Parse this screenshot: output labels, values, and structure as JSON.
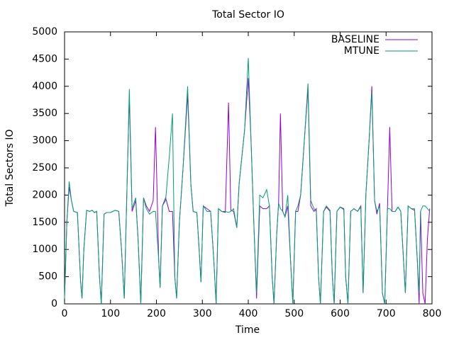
{
  "chart_data": {
    "type": "line",
    "title": "Total Sector IO",
    "xlabel": "Time",
    "ylabel": "Total Sectors IO",
    "x": [
      0,
      5,
      10,
      15,
      20,
      28,
      35,
      38,
      42,
      48,
      55,
      60,
      65,
      70,
      76,
      80,
      86,
      92,
      100,
      110,
      118,
      124,
      130,
      137,
      141,
      147,
      155,
      160,
      166,
      172,
      178,
      185,
      193,
      198,
      205,
      208,
      213,
      220,
      228,
      235,
      240,
      244,
      250,
      258,
      268,
      275,
      280,
      288,
      293,
      297,
      302,
      310,
      318,
      325,
      330,
      335,
      342,
      350,
      357,
      362,
      368,
      375,
      380,
      392,
      400,
      406,
      412,
      418,
      425,
      432,
      440,
      446,
      452,
      456,
      462,
      466,
      470,
      475,
      480,
      486,
      492,
      497,
      503,
      508,
      514,
      522,
      530,
      536,
      543,
      548,
      553,
      557,
      564,
      570,
      578,
      583,
      587,
      593,
      600,
      608,
      612,
      617,
      623,
      630,
      638,
      645,
      650,
      656,
      663,
      669,
      675,
      680,
      686,
      692,
      697,
      703,
      708,
      713,
      720,
      726,
      732,
      738,
      742,
      748,
      755,
      762,
      768,
      772,
      775,
      780,
      785,
      790,
      795
    ],
    "series": [
      {
        "name": "BASELINE",
        "color": "#9400d3",
        "values": [
          100,
          1500,
          2150,
          1900,
          1700,
          1680,
          400,
          100,
          1000,
          1720,
          1700,
          1720,
          1680,
          1700,
          500,
          0,
          1650,
          1680,
          1680,
          1720,
          1700,
          1000,
          100,
          2500,
          3800,
          1700,
          1900,
          1200,
          0,
          1950,
          1800,
          1700,
          1900,
          3250,
          800,
          300,
          1800,
          1950,
          1700,
          1700,
          500,
          100,
          1500,
          2500,
          3850,
          2200,
          1700,
          1680,
          1000,
          400,
          1800,
          1750,
          1700,
          800,
          0,
          1750,
          1700,
          1680,
          3700,
          1720,
          1700,
          1400,
          2200,
          3200,
          4150,
          3000,
          1500,
          100,
          1800,
          1750,
          1750,
          1800,
          500,
          0,
          1300,
          1850,
          3500,
          1700,
          1600,
          1800,
          800,
          0,
          1700,
          1700,
          2000,
          3000,
          3950,
          1800,
          1700,
          1750,
          500,
          0,
          1700,
          1780,
          1700,
          500,
          0,
          1700,
          1780,
          1750,
          500,
          0,
          1700,
          1750,
          1700,
          1800,
          200,
          2000,
          3000,
          4000,
          1900,
          1650,
          1850,
          200,
          0,
          1750,
          3250,
          1700,
          1700,
          1780,
          1700,
          800,
          200,
          1800,
          1750,
          1720,
          800,
          0,
          1700,
          200,
          0,
          1200,
          1750
        ]
      },
      {
        "name": "MTUNE",
        "color": "#009e73",
        "values": [
          100,
          1500,
          2250,
          1900,
          1700,
          1680,
          400,
          100,
          1000,
          1720,
          1700,
          1720,
          1680,
          1700,
          500,
          0,
          1650,
          1680,
          1680,
          1720,
          1700,
          1000,
          100,
          2500,
          3950,
          1750,
          1950,
          1200,
          0,
          1950,
          1750,
          1650,
          1700,
          1700,
          800,
          300,
          1800,
          1900,
          2700,
          3500,
          500,
          100,
          1500,
          2500,
          4000,
          2200,
          1700,
          1680,
          1000,
          400,
          1800,
          1700,
          1700,
          800,
          0,
          1750,
          1700,
          1700,
          1680,
          1700,
          1750,
          1400,
          2200,
          3200,
          4520,
          3000,
          1500,
          200,
          2000,
          1950,
          2100,
          1800,
          500,
          0,
          1300,
          1850,
          1750,
          1700,
          1600,
          2000,
          800,
          0,
          1700,
          1800,
          2000,
          3000,
          4050,
          1900,
          1750,
          1700,
          500,
          0,
          1700,
          1800,
          1720,
          500,
          0,
          1700,
          1780,
          1730,
          500,
          0,
          1700,
          1750,
          1700,
          1780,
          200,
          2000,
          3000,
          3900,
          1900,
          1700,
          1800,
          200,
          0,
          1750,
          1750,
          1700,
          1700,
          1780,
          1700,
          800,
          200,
          1800,
          1750,
          1750,
          800,
          200,
          1700,
          1800,
          1800,
          1750,
          1700
        ]
      }
    ],
    "xlim": [
      0,
      800
    ],
    "xticks": [
      0,
      100,
      200,
      300,
      400,
      500,
      600,
      700,
      800
    ],
    "ylim": [
      0,
      5000
    ],
    "yticks": [
      0,
      500,
      1000,
      1500,
      2000,
      2500,
      3000,
      3500,
      4000,
      4500,
      5000
    ],
    "grid": false,
    "legend": "top-right"
  }
}
